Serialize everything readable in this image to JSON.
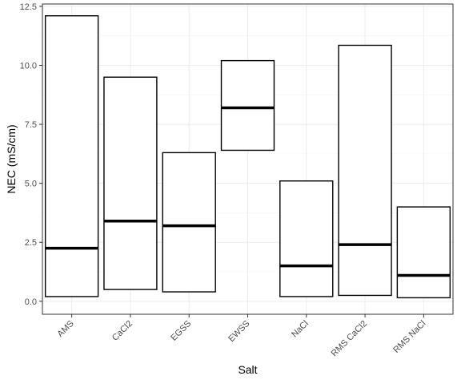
{
  "chart_data": {
    "type": "box",
    "title": "",
    "xlabel": "Salt",
    "ylabel": "NEC (mS/cm)",
    "ylim": [
      -0.55,
      12.6
    ],
    "yticks": [
      0.0,
      2.5,
      5.0,
      7.5,
      10.0,
      12.5
    ],
    "ytick_labels": [
      "0.0",
      "2.5",
      "5.0",
      "7.5",
      "10.0",
      "12.5"
    ],
    "grid": true,
    "categories": [
      "AMS",
      "CaCl2",
      "EGSS",
      "EWSS",
      "NaCl",
      "RMS CaCl2",
      "RMS NaCl"
    ],
    "boxes": [
      {
        "category": "AMS",
        "lower": 0.2,
        "median": 2.25,
        "upper": 12.1
      },
      {
        "category": "CaCl2",
        "lower": 0.5,
        "median": 3.4,
        "upper": 9.5
      },
      {
        "category": "EGSS",
        "lower": 0.4,
        "median": 3.2,
        "upper": 6.3
      },
      {
        "category": "EWSS",
        "lower": 6.4,
        "median": 8.2,
        "upper": 10.2
      },
      {
        "category": "NaCl",
        "lower": 0.2,
        "median": 1.5,
        "upper": 5.1
      },
      {
        "category": "RMS CaCl2",
        "lower": 0.25,
        "median": 2.4,
        "upper": 10.85
      },
      {
        "category": "RMS NaCl",
        "lower": 0.15,
        "median": 1.1,
        "upper": 4.0
      }
    ]
  }
}
